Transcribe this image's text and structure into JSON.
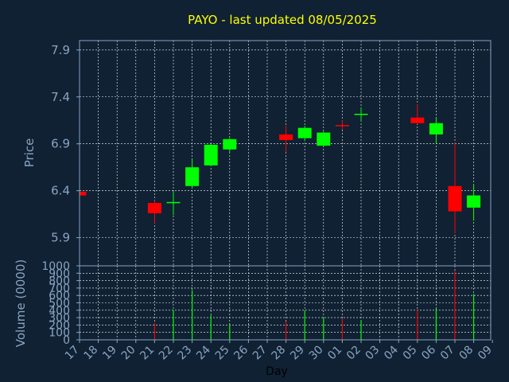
{
  "colors": {
    "background": "#0f2133",
    "plot_border": "#8aa4c0",
    "grid": "#ffffff",
    "text": "#8aa4c0",
    "title": "#ffff00",
    "up": "#00ff00",
    "down": "#ff0000",
    "xlabel": "#000000"
  },
  "chart_data": [
    {
      "type": "candlestick",
      "title": "PAYO - last updated 08/05/2025",
      "ylabel": "Price",
      "ylim": [
        5.6,
        8.0
      ],
      "yticks": [
        "5.9",
        "6.4",
        "6.9",
        "7.4",
        "7.9"
      ],
      "x_labels": [
        "17",
        "18",
        "19",
        "20",
        "21",
        "22",
        "23",
        "24",
        "25",
        "26",
        "27",
        "28",
        "29",
        "30",
        "01",
        "02",
        "03",
        "04",
        "05",
        "06",
        "07",
        "08",
        "09"
      ],
      "grid": true,
      "candles": [
        {
          "x": "17",
          "open": 6.39,
          "high": 6.43,
          "low": 6.34,
          "close": 6.35
        },
        {
          "x": "21",
          "open": 6.27,
          "high": 6.3,
          "low": 6.05,
          "close": 6.16
        },
        {
          "x": "22",
          "open": 6.27,
          "high": 6.39,
          "low": 6.14,
          "close": 6.28
        },
        {
          "x": "23",
          "open": 6.45,
          "high": 6.74,
          "low": 6.43,
          "close": 6.65
        },
        {
          "x": "24",
          "open": 6.67,
          "high": 6.9,
          "low": 6.66,
          "close": 6.89
        },
        {
          "x": "25",
          "open": 6.84,
          "high": 6.96,
          "low": 6.81,
          "close": 6.95
        },
        {
          "x": "28",
          "open": 7.0,
          "high": 7.09,
          "low": 6.81,
          "close": 6.94
        },
        {
          "x": "29",
          "open": 6.96,
          "high": 7.09,
          "low": 6.93,
          "close": 7.07
        },
        {
          "x": "30",
          "open": 6.88,
          "high": 7.03,
          "low": 6.87,
          "close": 7.02
        },
        {
          "x": "01",
          "open": 7.1,
          "high": 7.15,
          "low": 7.05,
          "close": 7.09
        },
        {
          "x": "02",
          "open": 7.21,
          "high": 7.29,
          "low": 7.14,
          "close": 7.22
        },
        {
          "x": "05",
          "open": 7.18,
          "high": 7.32,
          "low": 7.11,
          "close": 7.12
        },
        {
          "x": "06",
          "open": 7.0,
          "high": 7.18,
          "low": 6.9,
          "close": 7.12
        },
        {
          "x": "07",
          "open": 6.45,
          "high": 6.91,
          "low": 5.95,
          "close": 6.18
        },
        {
          "x": "08",
          "open": 6.22,
          "high": 6.47,
          "low": 6.08,
          "close": 6.35
        }
      ]
    },
    {
      "type": "bar",
      "ylabel": "Volume (0000)",
      "xlabel": "Day",
      "ylim": [
        0,
        1000
      ],
      "yticks": [
        "0",
        "100",
        "200",
        "300",
        "400",
        "500",
        "600",
        "700",
        "800",
        "900",
        "1000"
      ],
      "grid": true,
      "bars": [
        {
          "x": "17",
          "value": 0,
          "direction": "down"
        },
        {
          "x": "21",
          "value": 230,
          "direction": "down"
        },
        {
          "x": "22",
          "value": 400,
          "direction": "up"
        },
        {
          "x": "23",
          "value": 670,
          "direction": "up"
        },
        {
          "x": "24",
          "value": 330,
          "direction": "up"
        },
        {
          "x": "25",
          "value": 210,
          "direction": "up"
        },
        {
          "x": "28",
          "value": 250,
          "direction": "down"
        },
        {
          "x": "29",
          "value": 400,
          "direction": "up"
        },
        {
          "x": "30",
          "value": 300,
          "direction": "up"
        },
        {
          "x": "01",
          "value": 280,
          "direction": "down"
        },
        {
          "x": "02",
          "value": 260,
          "direction": "up"
        },
        {
          "x": "05",
          "value": 400,
          "direction": "down"
        },
        {
          "x": "06",
          "value": 420,
          "direction": "up"
        },
        {
          "x": "07",
          "value": 930,
          "direction": "down"
        },
        {
          "x": "08",
          "value": 620,
          "direction": "up"
        }
      ]
    }
  ]
}
